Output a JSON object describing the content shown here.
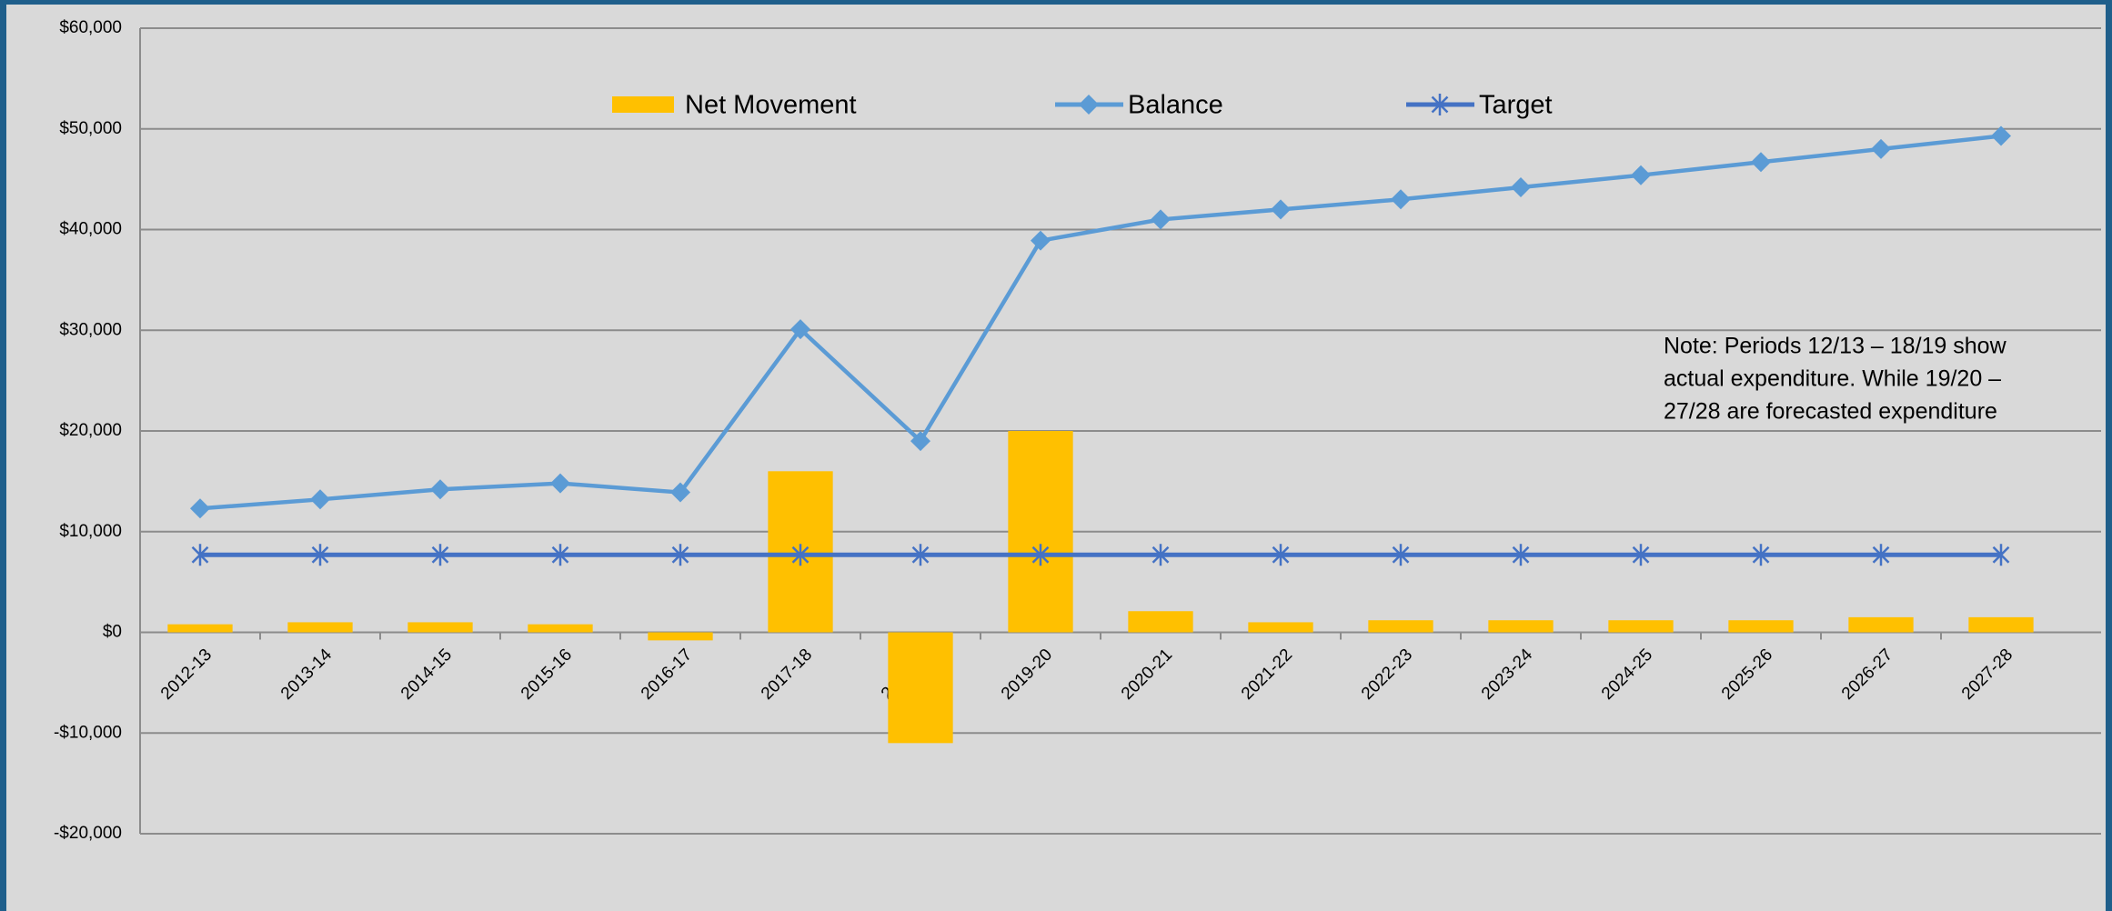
{
  "chart_data": {
    "type": "bar-line",
    "categories": [
      "2012-13",
      "2013-14",
      "2014-15",
      "2015-16",
      "2016-17",
      "2017-18",
      "2018-19",
      "2019-20",
      "2020-21",
      "2021-22",
      "2022-23",
      "2023-24",
      "2024-25",
      "2025-26",
      "2026-27",
      "2027-28"
    ],
    "series": [
      {
        "name": "Net Movement",
        "type": "bar",
        "color": "#ffc000",
        "values": [
          800,
          1000,
          1000,
          800,
          -800,
          16000,
          -11000,
          20000,
          2100,
          1000,
          1200,
          1200,
          1200,
          1200,
          1500,
          1500
        ]
      },
      {
        "name": "Balance",
        "type": "line",
        "marker": "diamond",
        "color": "#5b9bd5",
        "values": [
          12300,
          13200,
          14200,
          14800,
          13900,
          30100,
          19000,
          38900,
          41000,
          42000,
          43000,
          44200,
          45400,
          46700,
          48000,
          49300
        ]
      },
      {
        "name": "Target",
        "type": "line",
        "marker": "star",
        "color": "#4472c4",
        "values": [
          7700,
          7700,
          7700,
          7700,
          7700,
          7700,
          7700,
          7700,
          7700,
          7700,
          7700,
          7700,
          7700,
          7700,
          7700,
          7700
        ]
      }
    ],
    "ylim": [
      -20000,
      60000
    ],
    "yticks": [
      {
        "value": -20000,
        "label": "-$20,000"
      },
      {
        "value": -10000,
        "label": "-$10,000"
      },
      {
        "value": 0,
        "label": "$0"
      },
      {
        "value": 10000,
        "label": "$10,000"
      },
      {
        "value": 20000,
        "label": "$20,000"
      },
      {
        "value": 30000,
        "label": "$30,000"
      },
      {
        "value": 40000,
        "label": "$40,000"
      },
      {
        "value": 50000,
        "label": "$50,000"
      },
      {
        "value": 60000,
        "label": "$60,000"
      }
    ],
    "grid": true,
    "legend": "top",
    "note": [
      "Note: Periods 12/13 – 18/19 show",
      "actual expenditure. While 19/20 –",
      "27/28 are forecasted  expenditure"
    ]
  }
}
